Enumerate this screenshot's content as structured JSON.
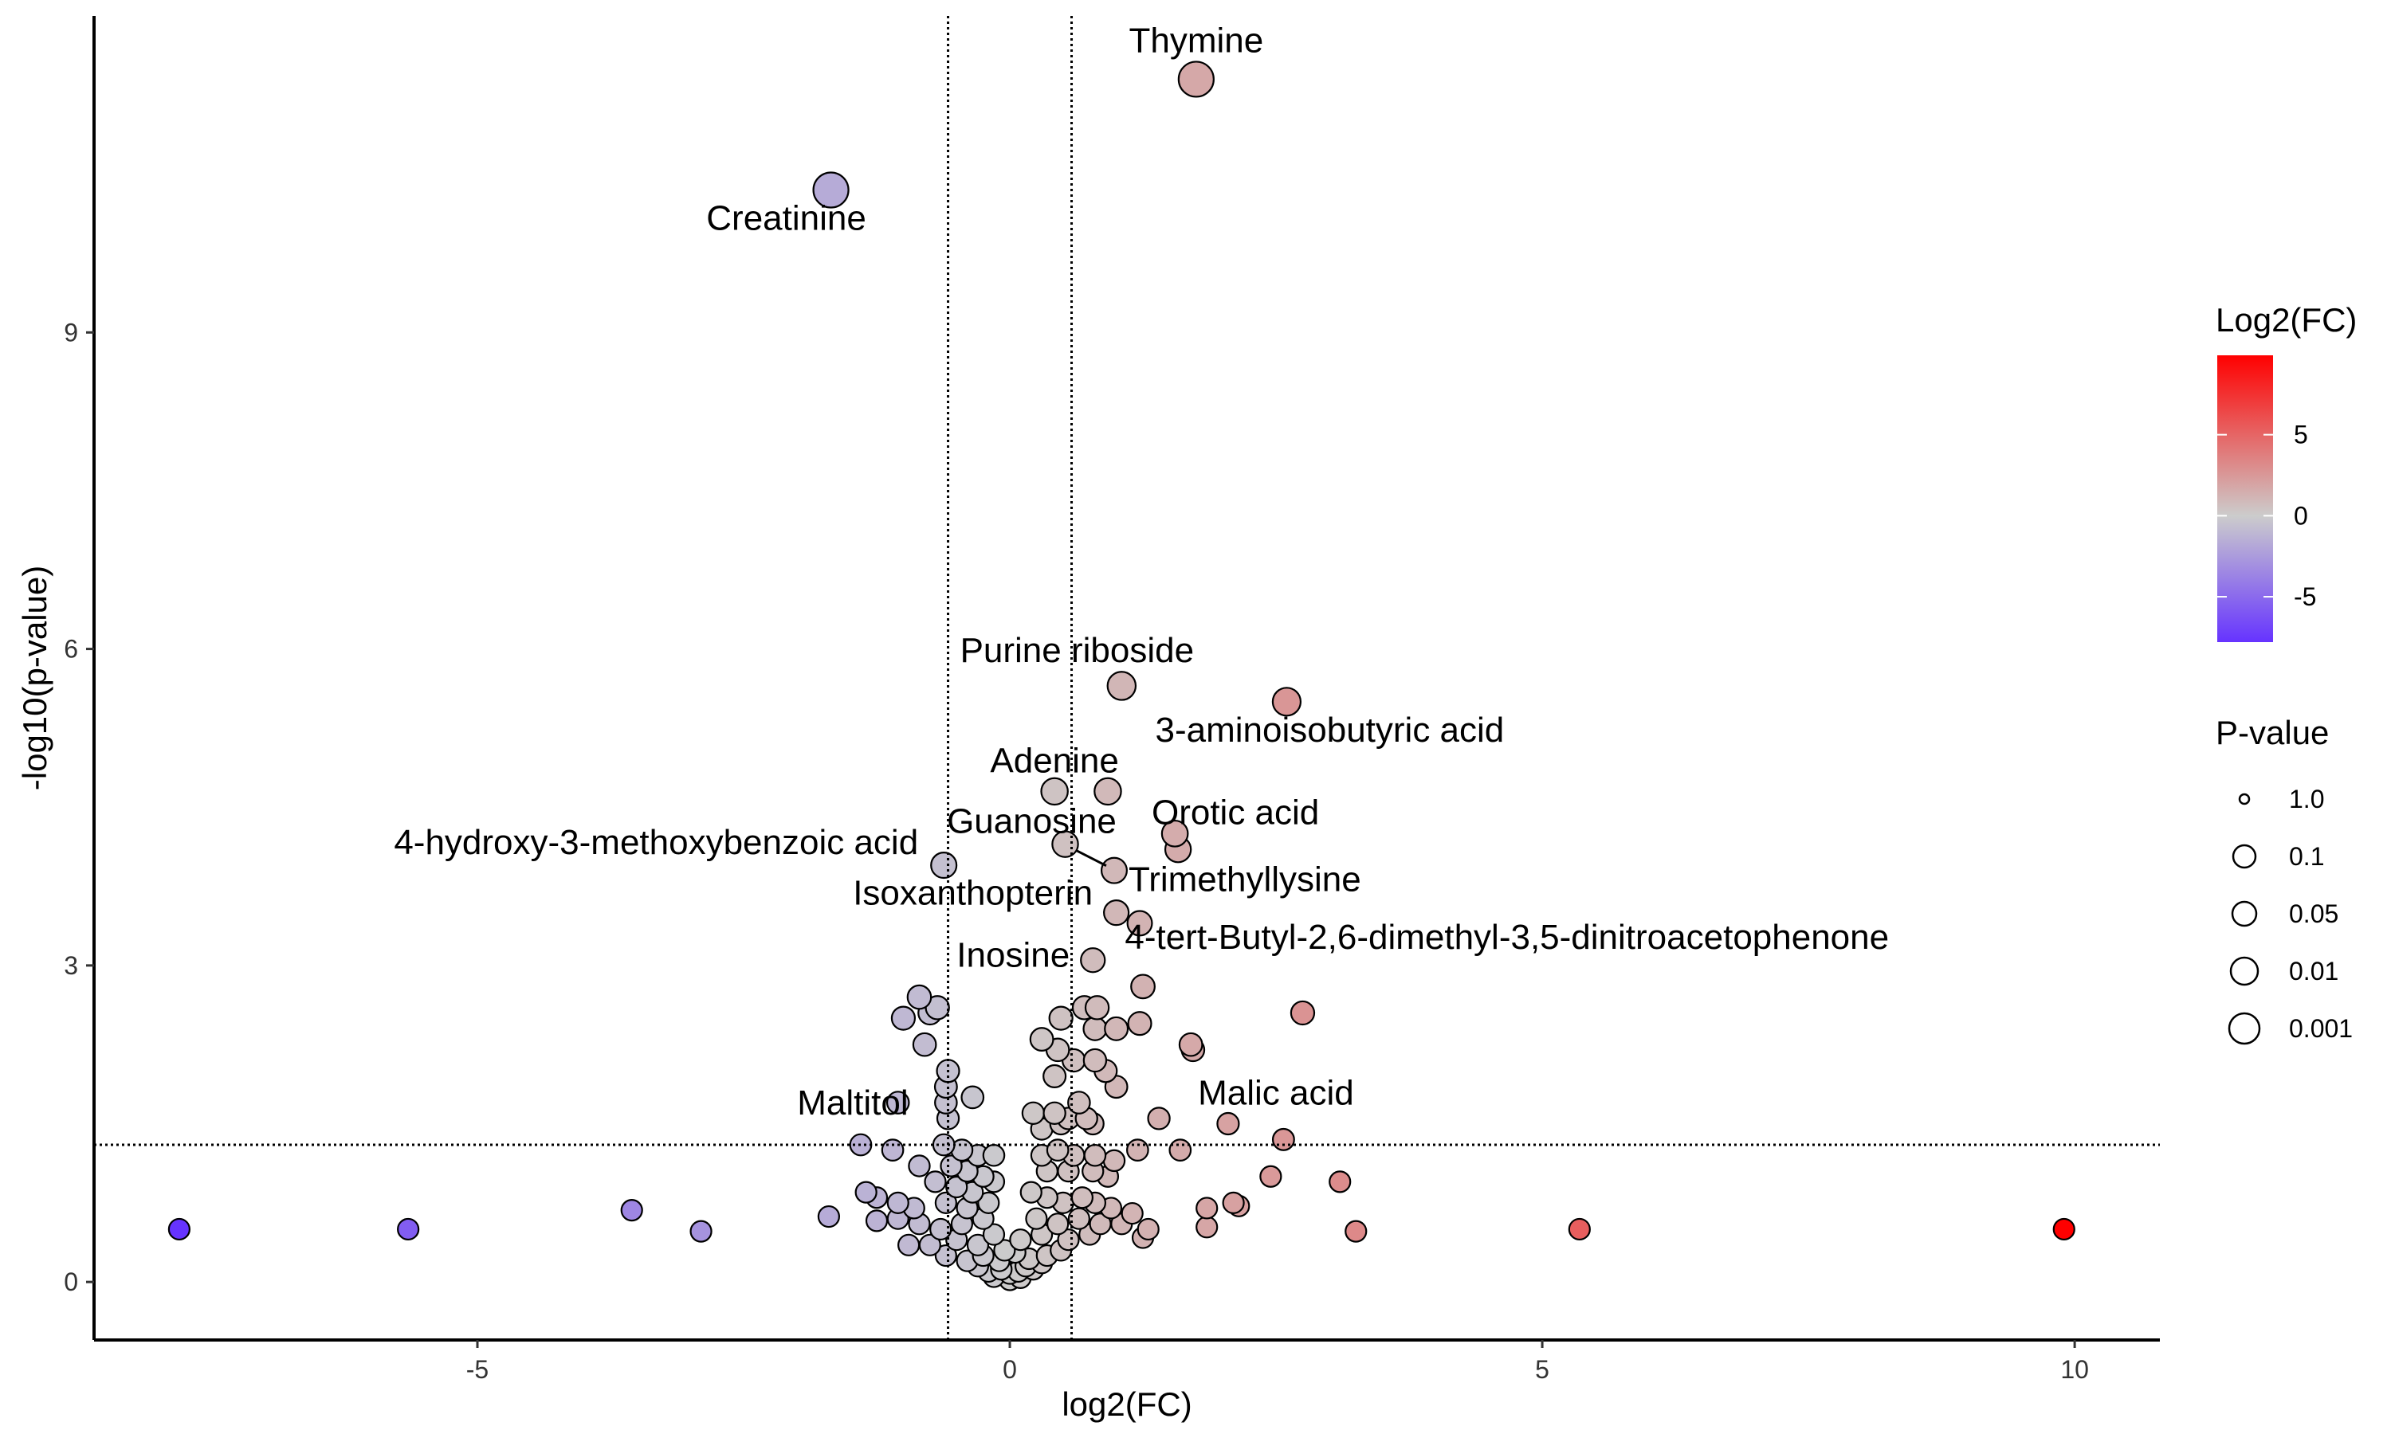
{
  "chart_data": {
    "type": "scatter",
    "xlabel": "log2(FC)",
    "ylabel": "-log10(p-value)",
    "xlim": [
      -8.6,
      10.8
    ],
    "ylim": [
      -0.55,
      12.0
    ],
    "x_ticks": [
      -5,
      0,
      5,
      10
    ],
    "y_ticks": [
      0,
      3,
      6,
      9
    ],
    "thresholds": {
      "vertical_lines_x": [
        -0.58,
        0.58
      ],
      "horizontal_line_y": 1.3,
      "line_style": "dotted"
    },
    "grid": false,
    "legend_placement": "right",
    "color_legend": {
      "title": "Log2(FC)",
      "min": -7.8,
      "max": 9.9,
      "ticks": [
        5,
        0,
        -5
      ],
      "colors": {
        "low": "#6633FF",
        "mid": "#CCCCCC",
        "high": "#FF0000"
      }
    },
    "size_legend": {
      "title": "P-value",
      "entries": [
        "1.0",
        "0.1",
        "0.05",
        "0.01",
        "0.001"
      ]
    },
    "labeled_points": [
      {
        "label": "Thymine",
        "x": 1.75,
        "y": 11.4
      },
      {
        "label": "Creatinine",
        "x": -1.68,
        "y": 10.35
      },
      {
        "label": "Purine riboside",
        "x": 1.05,
        "y": 5.65
      },
      {
        "label": "3-aminoisobutyric acid",
        "x": 2.6,
        "y": 5.5
      },
      {
        "label": "Adenine",
        "x": 0.42,
        "y": 4.65
      },
      {
        "label": "Orotic acid",
        "x": 1.55,
        "y": 4.25
      },
      {
        "label": "Guanosine",
        "x": 0.52,
        "y": 4.15
      },
      {
        "label": "Trimethyllysine",
        "x": 0.98,
        "y": 3.9
      },
      {
        "label": "4-hydroxy-3-methoxybenzoic acid",
        "x": -0.62,
        "y": 3.95
      },
      {
        "label": "Isoxanthopterin",
        "x": 1.0,
        "y": 3.5
      },
      {
        "label": "Inosine",
        "x": 0.78,
        "y": 3.05
      },
      {
        "label": "4-tert-Butyl-2,6-dimethyl-3,5-dinitroacetophenone",
        "x": 1.2,
        "y": 3.4
      },
      {
        "label": "Malic acid",
        "x": 2.05,
        "y": 1.5
      },
      {
        "label": "Maltitol",
        "x": -1.4,
        "y": 1.3
      }
    ],
    "points": [
      {
        "x": 1.75,
        "y": 11.4
      },
      {
        "x": -1.68,
        "y": 10.35
      },
      {
        "x": 1.05,
        "y": 5.65
      },
      {
        "x": 2.6,
        "y": 5.5
      },
      {
        "x": 0.42,
        "y": 4.65
      },
      {
        "x": 0.92,
        "y": 4.65
      },
      {
        "x": 1.55,
        "y": 4.25
      },
      {
        "x": 1.58,
        "y": 4.1
      },
      {
        "x": 0.52,
        "y": 4.15
      },
      {
        "x": 0.98,
        "y": 3.9
      },
      {
        "x": -0.62,
        "y": 3.95
      },
      {
        "x": 1.0,
        "y": 3.5
      },
      {
        "x": 1.22,
        "y": 3.4
      },
      {
        "x": 0.78,
        "y": 3.05
      },
      {
        "x": 1.25,
        "y": 2.8
      },
      {
        "x": 2.75,
        "y": 2.55
      },
      {
        "x": -0.85,
        "y": 2.7
      },
      {
        "x": -0.68,
        "y": 2.6
      },
      {
        "x": -1.0,
        "y": 2.5
      },
      {
        "x": -0.75,
        "y": 2.55
      },
      {
        "x": -0.8,
        "y": 2.25
      },
      {
        "x": 0.48,
        "y": 2.5
      },
      {
        "x": 0.7,
        "y": 2.6
      },
      {
        "x": 0.82,
        "y": 2.6
      },
      {
        "x": 0.8,
        "y": 2.4
      },
      {
        "x": 1.0,
        "y": 2.4
      },
      {
        "x": 1.22,
        "y": 2.45
      },
      {
        "x": 1.7,
        "y": 2.25
      },
      {
        "x": 1.72,
        "y": 2.2
      },
      {
        "x": 0.3,
        "y": 2.3
      },
      {
        "x": 0.45,
        "y": 2.2
      },
      {
        "x": 0.6,
        "y": 2.1
      },
      {
        "x": 0.8,
        "y": 2.1
      },
      {
        "x": 0.9,
        "y": 2.0
      },
      {
        "x": 1.0,
        "y": 1.85
      },
      {
        "x": 0.42,
        "y": 1.95
      },
      {
        "x": -0.58,
        "y": 2.0
      },
      {
        "x": -0.6,
        "y": 1.85
      },
      {
        "x": -0.35,
        "y": 1.75
      },
      {
        "x": -1.05,
        "y": 1.7
      },
      {
        "x": -0.6,
        "y": 1.7
      },
      {
        "x": -0.58,
        "y": 1.55
      },
      {
        "x": 0.22,
        "y": 1.6
      },
      {
        "x": 0.42,
        "y": 1.6
      },
      {
        "x": 0.55,
        "y": 1.55
      },
      {
        "x": 0.65,
        "y": 1.7
      },
      {
        "x": 0.72,
        "y": 1.55
      },
      {
        "x": 0.78,
        "y": 1.5
      },
      {
        "x": 1.4,
        "y": 1.55
      },
      {
        "x": 2.05,
        "y": 1.5
      },
      {
        "x": 2.57,
        "y": 1.35
      },
      {
        "x": 0.3,
        "y": 1.45
      },
      {
        "x": 0.48,
        "y": 1.5
      },
      {
        "x": -1.4,
        "y": 1.3
      },
      {
        "x": -1.1,
        "y": 1.25
      },
      {
        "x": -0.62,
        "y": 1.3
      },
      {
        "x": -0.45,
        "y": 1.25
      },
      {
        "x": -0.3,
        "y": 1.2
      },
      {
        "x": -0.15,
        "y": 1.2
      },
      {
        "x": -0.55,
        "y": 1.1
      },
      {
        "x": -0.4,
        "y": 1.05
      },
      {
        "x": -0.25,
        "y": 1.0
      },
      {
        "x": -0.85,
        "y": 1.1
      },
      {
        "x": 0.3,
        "y": 1.2
      },
      {
        "x": 0.45,
        "y": 1.25
      },
      {
        "x": 0.6,
        "y": 1.2
      },
      {
        "x": 0.8,
        "y": 1.2
      },
      {
        "x": 0.98,
        "y": 1.15
      },
      {
        "x": 1.2,
        "y": 1.25
      },
      {
        "x": 1.6,
        "y": 1.25
      },
      {
        "x": 0.35,
        "y": 1.05
      },
      {
        "x": 0.55,
        "y": 1.05
      },
      {
        "x": 0.78,
        "y": 1.05
      },
      {
        "x": 0.92,
        "y": 1.0
      },
      {
        "x": 2.45,
        "y": 1.0
      },
      {
        "x": 3.1,
        "y": 0.95
      },
      {
        "x": -0.7,
        "y": 0.95
      },
      {
        "x": -0.5,
        "y": 0.9
      },
      {
        "x": -0.35,
        "y": 0.85
      },
      {
        "x": -0.15,
        "y": 0.95
      },
      {
        "x": -1.35,
        "y": 0.85
      },
      {
        "x": -1.25,
        "y": 0.8
      },
      {
        "x": -1.05,
        "y": 0.75
      },
      {
        "x": -0.9,
        "y": 0.7
      },
      {
        "x": -0.6,
        "y": 0.75
      },
      {
        "x": -0.4,
        "y": 0.7
      },
      {
        "x": -0.2,
        "y": 0.75
      },
      {
        "x": 0.2,
        "y": 0.85
      },
      {
        "x": 0.35,
        "y": 0.8
      },
      {
        "x": 0.5,
        "y": 0.75
      },
      {
        "x": 0.68,
        "y": 0.8
      },
      {
        "x": 0.8,
        "y": 0.75
      },
      {
        "x": 0.95,
        "y": 0.7
      },
      {
        "x": 1.15,
        "y": 0.65
      },
      {
        "x": 1.85,
        "y": 0.7
      },
      {
        "x": 2.1,
        "y": 0.75
      },
      {
        "x": 2.15,
        "y": 0.72
      },
      {
        "x": -1.7,
        "y": 0.62
      },
      {
        "x": -1.25,
        "y": 0.58
      },
      {
        "x": -1.05,
        "y": 0.6
      },
      {
        "x": -0.85,
        "y": 0.55
      },
      {
        "x": -0.65,
        "y": 0.5
      },
      {
        "x": -0.45,
        "y": 0.55
      },
      {
        "x": -0.25,
        "y": 0.6
      },
      {
        "x": 0.25,
        "y": 0.6
      },
      {
        "x": 0.45,
        "y": 0.55
      },
      {
        "x": 0.65,
        "y": 0.6
      },
      {
        "x": 0.85,
        "y": 0.55
      },
      {
        "x": 1.05,
        "y": 0.55
      },
      {
        "x": 1.3,
        "y": 0.5
      },
      {
        "x": 1.85,
        "y": 0.52
      },
      {
        "x": 1.25,
        "y": 0.42
      },
      {
        "x": -0.95,
        "y": 0.35
      },
      {
        "x": -0.75,
        "y": 0.35
      },
      {
        "x": -0.5,
        "y": 0.4
      },
      {
        "x": -0.3,
        "y": 0.35
      },
      {
        "x": -0.15,
        "y": 0.45
      },
      {
        "x": 0.1,
        "y": 0.4
      },
      {
        "x": 0.3,
        "y": 0.45
      },
      {
        "x": 0.55,
        "y": 0.4
      },
      {
        "x": 0.75,
        "y": 0.45
      },
      {
        "x": -0.6,
        "y": 0.25
      },
      {
        "x": -0.4,
        "y": 0.2
      },
      {
        "x": -0.25,
        "y": 0.25
      },
      {
        "x": -0.1,
        "y": 0.2
      },
      {
        "x": -0.05,
        "y": 0.3
      },
      {
        "x": 0.05,
        "y": 0.28
      },
      {
        "x": 0.18,
        "y": 0.22
      },
      {
        "x": 0.35,
        "y": 0.25
      },
      {
        "x": 0.48,
        "y": 0.3
      },
      {
        "x": -0.2,
        "y": 0.1
      },
      {
        "x": -0.08,
        "y": 0.12
      },
      {
        "x": 0.0,
        "y": 0.08
      },
      {
        "x": 0.08,
        "y": 0.1
      },
      {
        "x": 0.15,
        "y": 0.15
      },
      {
        "x": 0.22,
        "y": 0.12
      },
      {
        "x": 0.3,
        "y": 0.18
      },
      {
        "x": -0.3,
        "y": 0.15
      },
      {
        "x": 0.0,
        "y": 0.02
      },
      {
        "x": -0.15,
        "y": 0.05
      },
      {
        "x": 0.1,
        "y": 0.04
      },
      {
        "x": -7.8,
        "y": 0.5
      },
      {
        "x": -5.65,
        "y": 0.5
      },
      {
        "x": -3.55,
        "y": 0.68
      },
      {
        "x": -2.9,
        "y": 0.48
      },
      {
        "x": 3.25,
        "y": 0.48
      },
      {
        "x": 5.35,
        "y": 0.5
      },
      {
        "x": 9.9,
        "y": 0.5
      }
    ]
  }
}
